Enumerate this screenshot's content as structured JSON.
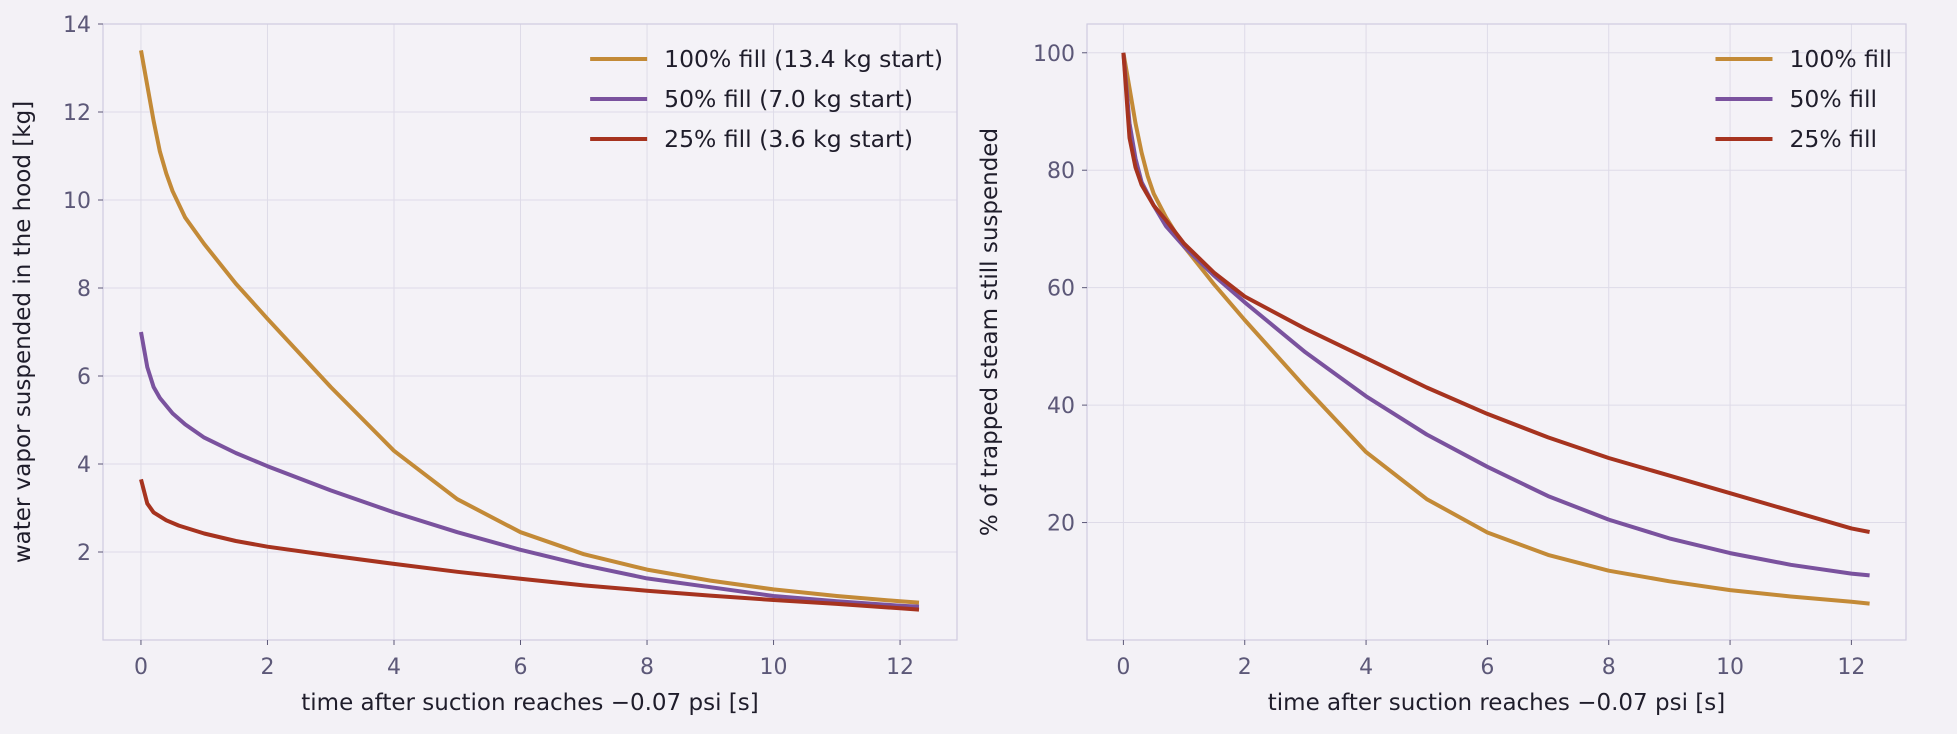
{
  "chart_data": [
    {
      "type": "line",
      "xlabel": "time after suction reaches −0.07 psi  [s]",
      "ylabel": "water vapor suspended in the hood  [kg]",
      "xlim": [
        -0.6,
        12.9
      ],
      "ylim": [
        0.0,
        14.0
      ],
      "xticks": [
        0,
        2,
        4,
        6,
        8,
        10,
        12
      ],
      "yticks": [
        2,
        4,
        6,
        8,
        10,
        12,
        14
      ],
      "grid": true,
      "legend_position": "top-right",
      "series": [
        {
          "name": "100% fill (13.4 kg start)",
          "color": "#c38a37",
          "x": [
            0,
            0.1,
            0.2,
            0.3,
            0.4,
            0.5,
            0.7,
            1,
            1.5,
            2,
            3,
            4,
            5,
            6,
            7,
            8,
            9,
            10,
            11,
            12,
            12.3
          ],
          "y": [
            13.4,
            12.6,
            11.8,
            11.1,
            10.6,
            10.2,
            9.6,
            9.0,
            8.1,
            7.3,
            5.75,
            4.3,
            3.2,
            2.45,
            1.95,
            1.6,
            1.35,
            1.15,
            1.0,
            0.88,
            0.85
          ]
        },
        {
          "name": "50% fill (7.0 kg start)",
          "color": "#7a529e",
          "x": [
            0,
            0.1,
            0.2,
            0.3,
            0.5,
            0.7,
            1,
            1.5,
            2,
            3,
            4,
            5,
            6,
            7,
            8,
            9,
            10,
            11,
            12,
            12.3
          ],
          "y": [
            7.0,
            6.2,
            5.75,
            5.5,
            5.15,
            4.9,
            4.6,
            4.25,
            3.95,
            3.4,
            2.9,
            2.45,
            2.05,
            1.7,
            1.4,
            1.2,
            1.0,
            0.88,
            0.78,
            0.76
          ]
        },
        {
          "name": "25% fill (3.6 kg start)",
          "color": "#a6331f",
          "x": [
            0,
            0.1,
            0.2,
            0.4,
            0.6,
            1,
            1.5,
            2,
            3,
            4,
            5,
            6,
            7,
            8,
            9,
            10,
            11,
            12,
            12.3
          ],
          "y": [
            3.65,
            3.1,
            2.9,
            2.72,
            2.6,
            2.42,
            2.25,
            2.12,
            1.92,
            1.73,
            1.55,
            1.39,
            1.24,
            1.12,
            1.01,
            0.91,
            0.82,
            0.72,
            0.69
          ]
        }
      ]
    },
    {
      "type": "line",
      "xlabel": "time after suction reaches −0.07 psi  [s]",
      "ylabel": "% of trapped steam still suspended",
      "xlim": [
        -0.6,
        12.9
      ],
      "ylim": [
        0.0,
        104.9
      ],
      "xticks": [
        0,
        2,
        4,
        6,
        8,
        10,
        12
      ],
      "yticks": [
        20,
        40,
        60,
        80,
        100
      ],
      "grid": true,
      "legend_position": "top-right",
      "series": [
        {
          "name": "100% fill",
          "color": "#c38a37",
          "x": [
            0,
            0.1,
            0.2,
            0.3,
            0.4,
            0.5,
            0.7,
            1,
            1.5,
            2,
            3,
            4,
            5,
            6,
            7,
            8,
            9,
            10,
            11,
            12,
            12.3
          ],
          "y": [
            100,
            94,
            88,
            83,
            79,
            76,
            72,
            67,
            60.5,
            54.5,
            43,
            32,
            24,
            18.3,
            14.5,
            11.8,
            10,
            8.5,
            7.4,
            6.5,
            6.2
          ]
        },
        {
          "name": "50% fill",
          "color": "#7a529e",
          "x": [
            0,
            0.1,
            0.2,
            0.3,
            0.5,
            0.7,
            1,
            1.5,
            2,
            3,
            4,
            5,
            6,
            7,
            8,
            9,
            10,
            11,
            12,
            12.3
          ],
          "y": [
            100,
            88,
            82,
            78,
            74,
            70.5,
            67,
            62,
            57.5,
            49,
            41.5,
            35,
            29.5,
            24.5,
            20.5,
            17.3,
            14.8,
            12.8,
            11.3,
            11
          ]
        },
        {
          "name": "25% fill",
          "color": "#a6331f",
          "x": [
            0,
            0.1,
            0.2,
            0.3,
            0.5,
            0.7,
            1,
            1.5,
            2,
            3,
            4,
            5,
            6,
            7,
            8,
            9,
            10,
            11,
            12,
            12.3
          ],
          "y": [
            100,
            85.5,
            80.5,
            77.5,
            74,
            71.5,
            67.5,
            62.5,
            58.5,
            53,
            48,
            43,
            38.5,
            34.5,
            31,
            28,
            25,
            22,
            19,
            18.4
          ]
        }
      ]
    }
  ]
}
